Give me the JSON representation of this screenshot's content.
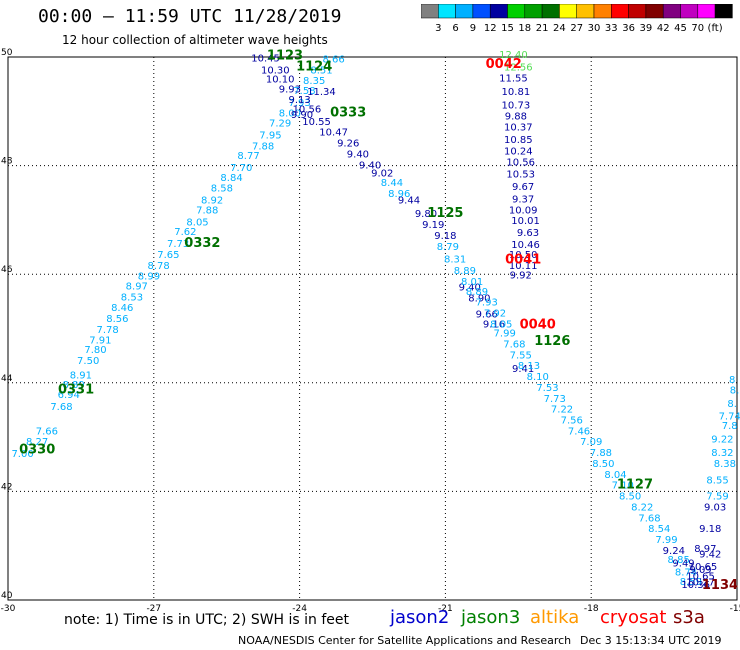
{
  "header": {
    "title": "00:00 – 11:59 UTC 11/28/2019",
    "subtitle": "12 hour collection of altimeter wave heights"
  },
  "colorbar": {
    "colors": [
      "#808080",
      "#00e5ff",
      "#00b0ff",
      "#0050ff",
      "#0000a0",
      "#00d000",
      "#00a000",
      "#007000",
      "#ffff00",
      "#ffc000",
      "#ff8000",
      "#ff0000",
      "#c00000",
      "#800000",
      "#800080",
      "#c000c0",
      "#ff00ff",
      "#000000"
    ],
    "labels": [
      "3",
      "6",
      "9",
      "12",
      "15",
      "18",
      "21",
      "24",
      "27",
      "30",
      "33",
      "36",
      "39",
      "42",
      "45",
      "70",
      "(ft)"
    ]
  },
  "footer": {
    "note": "note:  1) Time is in UTC; 2) SWH is in feet",
    "satellites": [
      {
        "name": "jason2",
        "color": "#0000cc"
      },
      {
        "name": "jason3",
        "color": "#008000"
      },
      {
        "name": "altika",
        "color": "#ff9900"
      },
      {
        "name": "cryosat",
        "color": "#ff0000"
      },
      {
        "name": "s3a",
        "color": "#800000"
      }
    ],
    "credit": "NOAA/NESDIS Center for Satellite Applications and Research",
    "timestamp": "Dec  3 15:13:34 UTC 2019"
  },
  "chart_data": {
    "type": "scatter",
    "xlim": [
      -30,
      -15
    ],
    "ylim": [
      40,
      50
    ],
    "x_ticks": [
      "-30",
      "-27",
      "-24",
      "-21",
      "-18",
      "-15"
    ],
    "y_ticks": [
      "40",
      "42",
      "44",
      "46",
      "48",
      "50"
    ],
    "grid": true,
    "colors": {
      "light": "#00b0ff",
      "dark": "#0000a0",
      "lightgreen": "#55dd55",
      "green": "#007000",
      "red": "#ff0000",
      "maroon": "#800000"
    },
    "time_labels": [
      {
        "text": "1123",
        "x": -24.3,
        "y": 49.95,
        "color": "green"
      },
      {
        "text": "1124",
        "x": -23.7,
        "y": 49.75,
        "color": "green"
      },
      {
        "text": "0333",
        "x": -23.0,
        "y": 48.9,
        "color": "green"
      },
      {
        "text": "1125",
        "x": -21.0,
        "y": 47.05,
        "color": "green"
      },
      {
        "text": "0332",
        "x": -26.0,
        "y": 46.5,
        "color": "green"
      },
      {
        "text": "0042",
        "x": -19.8,
        "y": 49.8,
        "color": "red"
      },
      {
        "text": "0041",
        "x": -19.4,
        "y": 46.2,
        "color": "red"
      },
      {
        "text": "0040",
        "x": -19.1,
        "y": 45.0,
        "color": "red"
      },
      {
        "text": "1126",
        "x": -18.8,
        "y": 44.7,
        "color": "green"
      },
      {
        "text": "0331",
        "x": -28.6,
        "y": 43.8,
        "color": "green"
      },
      {
        "text": "0330",
        "x": -29.4,
        "y": 42.7,
        "color": "green"
      },
      {
        "text": "1127",
        "x": -17.1,
        "y": 42.05,
        "color": "green"
      },
      {
        "text": "1134",
        "x": -15.35,
        "y": 40.2,
        "color": "maroon"
      }
    ],
    "tracks": [
      {
        "name": "jason3 ascending 0330-0333",
        "color": "light",
        "points": [
          [
            -29.7,
            42.63,
            "7.00"
          ],
          [
            -29.4,
            42.85,
            "8.27"
          ],
          [
            -29.2,
            43.05,
            "7.66"
          ],
          [
            -28.9,
            43.5,
            "7.68"
          ],
          [
            -28.75,
            43.72,
            "6.94"
          ],
          [
            -28.65,
            43.9,
            "8.89"
          ],
          [
            -28.5,
            44.08,
            "8.91"
          ],
          [
            -28.35,
            44.35,
            "7.50"
          ],
          [
            -28.2,
            44.55,
            "7.80"
          ],
          [
            -28.1,
            44.72,
            "7.91"
          ],
          [
            -27.95,
            44.92,
            "7.78"
          ],
          [
            -27.75,
            45.12,
            "8.56"
          ],
          [
            -27.65,
            45.32,
            "8.46"
          ],
          [
            -27.45,
            45.52,
            "8.53"
          ],
          [
            -27.35,
            45.72,
            "8.97"
          ],
          [
            -27.1,
            45.9,
            "8.99"
          ],
          [
            -26.9,
            46.1,
            "8.78"
          ],
          [
            -26.7,
            46.3,
            "7.65"
          ],
          [
            -26.5,
            46.5,
            "7.73"
          ],
          [
            -26.35,
            46.72,
            "7.62"
          ],
          [
            -26.1,
            46.9,
            "8.05"
          ],
          [
            -25.9,
            47.12,
            "7.88"
          ],
          [
            -25.8,
            47.3,
            "8.92"
          ],
          [
            -25.6,
            47.52,
            "8.58"
          ],
          [
            -25.4,
            47.72,
            "8.84"
          ],
          [
            -25.2,
            47.9,
            "7.70"
          ],
          [
            -25.05,
            48.12,
            "8.77"
          ],
          [
            -24.75,
            48.3,
            "7.88"
          ],
          [
            -24.6,
            48.5,
            "7.95"
          ],
          [
            -24.4,
            48.72,
            "7.29"
          ],
          [
            -24.2,
            48.9,
            "8.00"
          ],
          [
            -24.0,
            49.1,
            "7.93"
          ],
          [
            -23.9,
            49.32,
            "7.58"
          ],
          [
            -23.7,
            49.5,
            "8.35"
          ],
          [
            -23.55,
            49.7,
            "8.51"
          ],
          [
            -23.3,
            49.9,
            "8.66"
          ]
        ]
      },
      {
        "name": "jason2 descending",
        "color": "dark",
        "points": [
          [
            -24.7,
            49.92,
            "10.45"
          ],
          [
            -24.5,
            49.7,
            "10.30"
          ],
          [
            -24.4,
            49.53,
            "10.10"
          ],
          [
            -24.2,
            49.35,
            "9.93"
          ],
          [
            -24.0,
            49.15,
            "9.13"
          ],
          [
            -23.85,
            48.98,
            "10.56"
          ],
          [
            -23.95,
            48.88,
            "9.90"
          ],
          [
            -23.55,
            49.3,
            "11.34"
          ],
          [
            -23.65,
            48.75,
            "10.55"
          ],
          [
            -23.3,
            48.55,
            "10.47"
          ],
          [
            -23.0,
            48.35,
            "9.26"
          ],
          [
            -22.8,
            48.15,
            "9.40"
          ],
          [
            -22.55,
            47.95,
            "9.40"
          ],
          [
            -22.3,
            47.8,
            "9.02"
          ],
          [
            -21.75,
            47.3,
            "9.44"
          ],
          [
            -21.4,
            47.05,
            "9.80"
          ],
          [
            -21.25,
            46.85,
            "9.19"
          ],
          [
            -21.0,
            46.65,
            "9.18"
          ],
          [
            -20.5,
            45.7,
            "9.40"
          ],
          [
            -20.3,
            45.5,
            "8.90"
          ],
          [
            -19.4,
            44.2,
            "9.41"
          ],
          [
            -20.0,
            45.02,
            "9.16"
          ],
          [
            -20.15,
            45.2,
            "9.66"
          ]
        ]
      },
      {
        "name": "jason3 descending 1125-1127",
        "color": "light",
        "points": [
          [
            -22.1,
            47.62,
            "8.44"
          ],
          [
            -21.95,
            47.42,
            "8.96"
          ],
          [
            -20.95,
            46.45,
            "8.79"
          ],
          [
            -20.8,
            46.22,
            "8.31"
          ],
          [
            -20.6,
            46.0,
            "8.89"
          ],
          [
            -20.45,
            45.8,
            "8.01"
          ],
          [
            -20.35,
            45.62,
            "8.89"
          ],
          [
            -20.15,
            45.42,
            "7.93"
          ],
          [
            -19.98,
            45.22,
            "7.92"
          ],
          [
            -19.85,
            45.02,
            "8.05"
          ],
          [
            -19.78,
            44.85,
            "7.99"
          ],
          [
            -19.58,
            44.65,
            "7.68"
          ],
          [
            -19.45,
            44.45,
            "7.55"
          ],
          [
            -19.28,
            44.25,
            "8.13"
          ],
          [
            -19.1,
            44.05,
            "8.10"
          ],
          [
            -18.9,
            43.85,
            "7.53"
          ],
          [
            -18.75,
            43.65,
            "7.73"
          ],
          [
            -18.6,
            43.45,
            "7.22"
          ],
          [
            -18.4,
            43.25,
            "7.56"
          ],
          [
            -18.25,
            43.05,
            "7.46"
          ],
          [
            -18.0,
            42.85,
            "7.09"
          ],
          [
            -17.8,
            42.65,
            "7.88"
          ],
          [
            -17.75,
            42.45,
            "8.50"
          ],
          [
            -17.5,
            42.25,
            "8.04"
          ],
          [
            -17.35,
            42.05,
            "7.10"
          ],
          [
            -17.2,
            41.85,
            "8.50"
          ],
          [
            -16.95,
            41.65,
            "8.22"
          ],
          [
            -16.8,
            41.45,
            "7.68"
          ],
          [
            -16.6,
            41.25,
            "8.54"
          ],
          [
            -16.45,
            41.05,
            "7.99"
          ],
          [
            -16.2,
            40.68,
            "8.85"
          ],
          [
            -16.05,
            40.45,
            "8.74"
          ],
          [
            -15.95,
            40.28,
            "8.59"
          ]
        ]
      },
      {
        "name": "jason2 descending far",
        "color": "dark",
        "points": [
          [
            -16.3,
            40.85,
            "9.24"
          ],
          [
            -16.1,
            40.62,
            "9.49"
          ],
          [
            -15.75,
            40.38,
            "10.65"
          ],
          [
            -15.85,
            40.22,
            "10.36"
          ]
        ]
      },
      {
        "name": "jason2 ascending east",
        "color": "dark",
        "points": [
          [
            -15.45,
            41.65,
            "9.03"
          ],
          [
            -15.55,
            41.25,
            "9.18"
          ],
          [
            -15.65,
            40.88,
            "8.97"
          ],
          [
            -15.55,
            40.78,
            "9.42"
          ],
          [
            -15.7,
            40.55,
            "10.65"
          ],
          [
            -15.75,
            40.5,
            "9.09"
          ],
          [
            -15.75,
            40.27,
            "10.27"
          ]
        ]
      },
      {
        "name": "jason3 ascending east",
        "color": "light",
        "points": [
          [
            -15.1,
            44.0,
            "8"
          ],
          [
            -15.05,
            43.8,
            "8."
          ],
          [
            -15.1,
            43.55,
            "8."
          ],
          [
            -15.15,
            43.32,
            "7.74"
          ],
          [
            -15.15,
            43.15,
            "7.8"
          ],
          [
            -15.3,
            42.9,
            "9.22"
          ],
          [
            -15.3,
            42.65,
            "8.32"
          ],
          [
            -15.25,
            42.45,
            "8.38"
          ],
          [
            -15.4,
            42.15,
            "8.55"
          ],
          [
            -15.4,
            41.85,
            "7.59"
          ]
        ]
      },
      {
        "name": "cryosat descending",
        "color": "dark",
        "points": [
          [
            -19.6,
            49.55,
            "11.55"
          ],
          [
            -19.55,
            49.3,
            "10.81"
          ],
          [
            -19.55,
            49.05,
            "10.73"
          ],
          [
            -19.55,
            48.85,
            "9.88"
          ],
          [
            -19.5,
            48.65,
            "10.37"
          ],
          [
            -19.5,
            48.42,
            "10.85"
          ],
          [
            -19.5,
            48.2,
            "10.24"
          ],
          [
            -19.45,
            48.0,
            "10.56"
          ],
          [
            -19.45,
            47.78,
            "10.53"
          ],
          [
            -19.4,
            47.55,
            "9.67"
          ],
          [
            -19.4,
            47.32,
            "9.37"
          ],
          [
            -19.4,
            47.12,
            "10.09"
          ],
          [
            -19.35,
            46.92,
            "10.01"
          ],
          [
            -19.3,
            46.7,
            "9.63"
          ],
          [
            -19.35,
            46.48,
            "10.46"
          ],
          [
            -19.4,
            46.3,
            "10.50"
          ],
          [
            -19.4,
            46.1,
            "10.11"
          ],
          [
            -19.45,
            45.92,
            "9.92"
          ]
        ]
      },
      {
        "name": "cryosat top",
        "color": "lightgreen",
        "points": [
          [
            -19.6,
            49.98,
            "12.40"
          ],
          [
            -19.5,
            49.75,
            "12.56"
          ]
        ]
      }
    ]
  }
}
